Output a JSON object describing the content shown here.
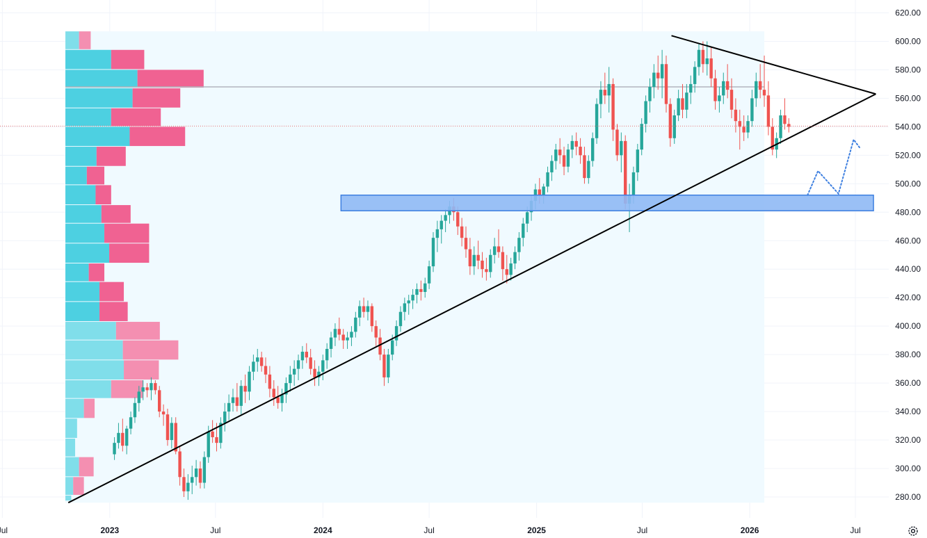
{
  "chart_data": {
    "type": "candlestick",
    "y_axis": {
      "range": [
        270,
        625
      ],
      "ticks": [
        {
          "value": 620,
          "label": "620.00"
        },
        {
          "value": 600,
          "label": "600.00"
        },
        {
          "value": 580,
          "label": "580.00"
        },
        {
          "value": 560,
          "label": "560.00"
        },
        {
          "value": 540,
          "label": "540.00"
        },
        {
          "value": 520,
          "label": "520.00"
        },
        {
          "value": 500,
          "label": "500.00"
        },
        {
          "value": 480,
          "label": "480.00"
        },
        {
          "value": 460,
          "label": "460.00"
        },
        {
          "value": 440,
          "label": "440.00"
        },
        {
          "value": 420,
          "label": "420.00"
        },
        {
          "value": 400,
          "label": "400.00"
        },
        {
          "value": 380,
          "label": "380.00"
        },
        {
          "value": 360,
          "label": "360.00"
        },
        {
          "value": 340,
          "label": "340.00"
        },
        {
          "value": 320,
          "label": "320.00"
        },
        {
          "value": 300,
          "label": "300.00"
        },
        {
          "value": 280,
          "label": "280.00"
        }
      ]
    },
    "x_axis": {
      "range": [
        "2022-06-27",
        "2026-08-20"
      ],
      "ticks": [
        {
          "date": "2022-07-01",
          "label": "Jul",
          "bold": false
        },
        {
          "date": "2023-01-01",
          "label": "2023",
          "bold": true
        },
        {
          "date": "2023-07-01",
          "label": "Jul",
          "bold": false
        },
        {
          "date": "2024-01-01",
          "label": "2024",
          "bold": true
        },
        {
          "date": "2024-07-01",
          "label": "Jul",
          "bold": false
        },
        {
          "date": "2025-01-01",
          "label": "2025",
          "bold": true
        },
        {
          "date": "2025-07-01",
          "label": "Jul",
          "bold": false
        },
        {
          "date": "2026-01-01",
          "label": "2026",
          "bold": true
        },
        {
          "date": "2026-07-01",
          "label": "Jul",
          "bold": false
        }
      ]
    },
    "grid": true,
    "colors": {
      "up": "#26a69a",
      "down": "#ef5350",
      "vp_up": "#4dd0e1",
      "vp_down": "#f06292",
      "vp_up_light": "#80deea",
      "vp_down_light": "#f48fb1",
      "range_fill": "#f0faff",
      "zone_fill": "#8fb9f5",
      "zone_stroke": "#3d7fe0",
      "trendline": "#000000",
      "poc_line": "#b2b5be",
      "price_line": "#e57373",
      "projection": "#3d7fe0",
      "grid": "#f0f3fa"
    },
    "current_price": 540.5,
    "candle_anchor": "2026-03-09",
    "candles": [
      [
        310,
        322,
        306,
        318
      ],
      [
        318,
        332,
        314,
        325
      ],
      [
        325,
        335,
        312,
        316
      ],
      [
        316,
        330,
        310,
        328
      ],
      [
        328,
        340,
        324,
        336
      ],
      [
        336,
        350,
        332,
        346
      ],
      [
        346,
        358,
        340,
        354
      ],
      [
        354,
        362,
        348,
        357
      ],
      [
        357,
        360,
        350,
        355
      ],
      [
        355,
        364,
        348,
        360
      ],
      [
        360,
        362,
        352,
        355
      ],
      [
        355,
        358,
        336,
        340
      ],
      [
        340,
        345,
        330,
        338
      ],
      [
        338,
        342,
        316,
        320
      ],
      [
        320,
        336,
        314,
        332
      ],
      [
        332,
        336,
        310,
        312
      ],
      [
        312,
        316,
        288,
        294
      ],
      [
        294,
        300,
        280,
        284
      ],
      [
        284,
        296,
        278,
        290
      ],
      [
        290,
        302,
        282,
        294
      ],
      [
        294,
        306,
        288,
        300
      ],
      [
        300,
        305,
        286,
        290
      ],
      [
        290,
        312,
        286,
        308
      ],
      [
        308,
        330,
        304,
        326
      ],
      [
        326,
        334,
        318,
        322
      ],
      [
        322,
        332,
        312,
        318
      ],
      [
        318,
        336,
        314,
        332
      ],
      [
        332,
        346,
        326,
        340
      ],
      [
        340,
        352,
        334,
        346
      ],
      [
        346,
        356,
        340,
        350
      ],
      [
        350,
        360,
        340,
        344
      ],
      [
        344,
        362,
        338,
        358
      ],
      [
        358,
        366,
        346,
        354
      ],
      [
        354,
        372,
        348,
        368
      ],
      [
        368,
        380,
        362,
        375
      ],
      [
        375,
        384,
        368,
        378
      ],
      [
        378,
        382,
        368,
        372
      ],
      [
        372,
        378,
        360,
        366
      ],
      [
        366,
        372,
        350,
        356
      ],
      [
        356,
        362,
        344,
        350
      ],
      [
        350,
        358,
        342,
        346
      ],
      [
        346,
        356,
        340,
        352
      ],
      [
        352,
        364,
        346,
        360
      ],
      [
        360,
        372,
        354,
        366
      ],
      [
        366,
        376,
        358,
        370
      ],
      [
        370,
        380,
        362,
        376
      ],
      [
        376,
        386,
        370,
        382
      ],
      [
        382,
        388,
        374,
        378
      ],
      [
        378,
        384,
        366,
        370
      ],
      [
        370,
        376,
        358,
        364
      ],
      [
        364,
        372,
        358,
        368
      ],
      [
        368,
        380,
        362,
        376
      ],
      [
        376,
        388,
        370,
        384
      ],
      [
        384,
        396,
        378,
        392
      ],
      [
        392,
        402,
        386,
        398
      ],
      [
        398,
        406,
        390,
        394
      ],
      [
        394,
        398,
        384,
        390
      ],
      [
        390,
        396,
        384,
        392
      ],
      [
        392,
        400,
        386,
        396
      ],
      [
        396,
        410,
        392,
        406
      ],
      [
        406,
        418,
        400,
        414
      ],
      [
        414,
        420,
        406,
        410
      ],
      [
        410,
        418,
        404,
        414
      ],
      [
        414,
        416,
        396,
        400
      ],
      [
        400,
        404,
        386,
        392
      ],
      [
        392,
        398,
        376,
        380
      ],
      [
        380,
        384,
        358,
        364
      ],
      [
        364,
        384,
        360,
        380
      ],
      [
        380,
        394,
        376,
        390
      ],
      [
        390,
        404,
        386,
        400
      ],
      [
        400,
        414,
        396,
        410
      ],
      [
        410,
        420,
        404,
        416
      ],
      [
        416,
        422,
        408,
        418
      ],
      [
        418,
        426,
        412,
        422
      ],
      [
        422,
        430,
        416,
        426
      ],
      [
        426,
        432,
        418,
        424
      ],
      [
        424,
        434,
        420,
        430
      ],
      [
        430,
        446,
        426,
        442
      ],
      [
        442,
        466,
        438,
        462
      ],
      [
        462,
        474,
        452,
        468
      ],
      [
        468,
        478,
        458,
        474
      ],
      [
        474,
        482,
        466,
        478
      ],
      [
        478,
        488,
        472,
        484
      ],
      [
        484,
        490,
        474,
        480
      ],
      [
        480,
        484,
        464,
        470
      ],
      [
        470,
        476,
        456,
        462
      ],
      [
        462,
        470,
        448,
        454
      ],
      [
        454,
        462,
        436,
        442
      ],
      [
        442,
        456,
        436,
        450
      ],
      [
        450,
        460,
        440,
        446
      ],
      [
        446,
        452,
        434,
        440
      ],
      [
        440,
        448,
        432,
        438
      ],
      [
        438,
        454,
        434,
        450
      ],
      [
        450,
        462,
        444,
        456
      ],
      [
        456,
        468,
        448,
        452
      ],
      [
        452,
        456,
        432,
        440
      ],
      [
        440,
        450,
        430,
        436
      ],
      [
        436,
        448,
        432,
        444
      ],
      [
        444,
        456,
        440,
        452
      ],
      [
        452,
        466,
        446,
        462
      ],
      [
        462,
        476,
        456,
        472
      ],
      [
        472,
        484,
        466,
        480
      ],
      [
        480,
        492,
        474,
        488
      ],
      [
        488,
        500,
        482,
        496
      ],
      [
        496,
        504,
        486,
        492
      ],
      [
        492,
        500,
        486,
        498
      ],
      [
        498,
        512,
        494,
        508
      ],
      [
        508,
        520,
        502,
        516
      ],
      [
        516,
        528,
        510,
        524
      ],
      [
        524,
        532,
        514,
        520
      ],
      [
        520,
        526,
        506,
        512
      ],
      [
        512,
        528,
        508,
        524
      ],
      [
        524,
        534,
        518,
        530
      ],
      [
        530,
        536,
        520,
        526
      ],
      [
        526,
        532,
        514,
        520
      ],
      [
        520,
        526,
        500,
        504
      ],
      [
        504,
        520,
        500,
        516
      ],
      [
        516,
        536,
        512,
        532
      ],
      [
        532,
        560,
        528,
        556
      ],
      [
        556,
        572,
        546,
        566
      ],
      [
        566,
        578,
        556,
        562
      ],
      [
        562,
        582,
        550,
        570
      ],
      [
        570,
        574,
        530,
        538
      ],
      [
        538,
        542,
        516,
        520
      ],
      [
        520,
        536,
        508,
        530
      ],
      [
        530,
        534,
        482,
        486
      ],
      [
        486,
        500,
        466,
        492
      ],
      [
        492,
        512,
        486,
        508
      ],
      [
        508,
        528,
        502,
        524
      ],
      [
        524,
        546,
        520,
        542
      ],
      [
        542,
        562,
        536,
        558
      ],
      [
        558,
        574,
        550,
        568
      ],
      [
        568,
        584,
        560,
        578
      ],
      [
        578,
        590,
        566,
        574
      ],
      [
        574,
        594,
        560,
        584
      ],
      [
        584,
        590,
        550,
        556
      ],
      [
        556,
        560,
        526,
        532
      ],
      [
        532,
        552,
        528,
        548
      ],
      [
        548,
        566,
        544,
        560
      ],
      [
        560,
        570,
        546,
        552
      ],
      [
        552,
        570,
        546,
        564
      ],
      [
        564,
        576,
        556,
        570
      ],
      [
        570,
        586,
        564,
        582
      ],
      [
        582,
        598,
        576,
        594
      ],
      [
        594,
        600,
        578,
        584
      ],
      [
        584,
        600,
        576,
        588
      ],
      [
        588,
        596,
        568,
        574
      ],
      [
        574,
        580,
        552,
        558
      ],
      [
        558,
        568,
        550,
        562
      ],
      [
        562,
        578,
        556,
        572
      ],
      [
        572,
        584,
        560,
        566
      ],
      [
        566,
        574,
        546,
        552
      ],
      [
        552,
        560,
        536,
        544
      ],
      [
        544,
        552,
        524,
        540
      ],
      [
        540,
        548,
        530,
        536
      ],
      [
        536,
        548,
        532,
        544
      ],
      [
        544,
        566,
        540,
        560
      ],
      [
        560,
        578,
        554,
        572
      ],
      [
        572,
        584,
        560,
        566
      ],
      [
        566,
        590,
        554,
        562
      ],
      [
        562,
        572,
        534,
        540
      ],
      [
        540,
        546,
        520,
        524
      ],
      [
        524,
        536,
        518,
        532
      ],
      [
        532,
        552,
        528,
        548
      ],
      [
        548,
        560,
        538,
        542
      ],
      [
        542,
        546,
        536,
        540
      ]
    ],
    "volume_profile": [
      {
        "low": 594,
        "high": 607,
        "buy": 14,
        "sell": 12,
        "light": true
      },
      {
        "low": 580,
        "high": 594,
        "buy": 47,
        "sell": 34,
        "light": false
      },
      {
        "low": 567,
        "high": 580,
        "buy": 74,
        "sell": 68,
        "light": false
      },
      {
        "low": 553,
        "high": 567,
        "buy": 69,
        "sell": 49,
        "light": false
      },
      {
        "low": 540,
        "high": 553,
        "buy": 47,
        "sell": 51,
        "light": false
      },
      {
        "low": 526,
        "high": 540,
        "buy": 66,
        "sell": 57,
        "light": false
      },
      {
        "low": 512,
        "high": 526,
        "buy": 32,
        "sell": 30,
        "light": false
      },
      {
        "low": 499,
        "high": 512,
        "buy": 22,
        "sell": 18,
        "light": false
      },
      {
        "low": 485,
        "high": 499,
        "buy": 31,
        "sell": 16,
        "light": false
      },
      {
        "low": 472,
        "high": 485,
        "buy": 37,
        "sell": 30,
        "light": false
      },
      {
        "low": 458,
        "high": 472,
        "buy": 40,
        "sell": 46,
        "light": false
      },
      {
        "low": 444,
        "high": 458,
        "buy": 45,
        "sell": 41,
        "light": false
      },
      {
        "low": 431,
        "high": 444,
        "buy": 24,
        "sell": 16,
        "light": false
      },
      {
        "low": 417,
        "high": 431,
        "buy": 35,
        "sell": 25,
        "light": false
      },
      {
        "low": 403,
        "high": 417,
        "buy": 35,
        "sell": 29,
        "light": false
      },
      {
        "low": 390,
        "high": 403,
        "buy": 52,
        "sell": 45,
        "light": true
      },
      {
        "low": 376,
        "high": 390,
        "buy": 59,
        "sell": 57,
        "light": true
      },
      {
        "low": 362,
        "high": 376,
        "buy": 60,
        "sell": 36,
        "light": true
      },
      {
        "low": 349,
        "high": 362,
        "buy": 47,
        "sell": 33,
        "light": true
      },
      {
        "low": 335,
        "high": 349,
        "buy": 19,
        "sell": 11,
        "light": true
      },
      {
        "low": 321,
        "high": 335,
        "buy": 12,
        "sell": 0,
        "light": true
      },
      {
        "low": 308,
        "high": 321,
        "buy": 10,
        "sell": 0,
        "light": true
      },
      {
        "low": 294,
        "high": 308,
        "buy": 14,
        "sell": 15,
        "light": true
      },
      {
        "low": 281,
        "high": 294,
        "buy": 8,
        "sell": 11,
        "light": true
      },
      {
        "low": 277,
        "high": 281,
        "buy": 6,
        "sell": 0,
        "light": true
      }
    ],
    "volume_profile_range": {
      "start": "2022-10-17",
      "end": "2026-01-26",
      "low": 276,
      "high": 607
    },
    "poc_price": 568,
    "demand_zone": {
      "start": "2024-02-01",
      "end": "2026-08-01",
      "low": 481,
      "high": 492
    },
    "trendlines": [
      {
        "start": {
          "date": "2022-10-22",
          "value": 276
        },
        "end": {
          "date": "2026-08-05",
          "value": 563
        }
      },
      {
        "start": {
          "date": "2025-08-20",
          "value": 604
        },
        "end": {
          "date": "2026-08-05",
          "value": 563
        }
      }
    ],
    "projection": [
      {
        "date": "2026-04-10",
        "value": 492
      },
      {
        "date": "2026-04-28",
        "value": 509
      },
      {
        "date": "2026-06-02",
        "value": 493
      },
      {
        "date": "2026-06-28",
        "value": 531
      },
      {
        "date": "2026-07-09",
        "value": 525
      }
    ],
    "axis_icons": {
      "settings": "gear-icon"
    }
  }
}
